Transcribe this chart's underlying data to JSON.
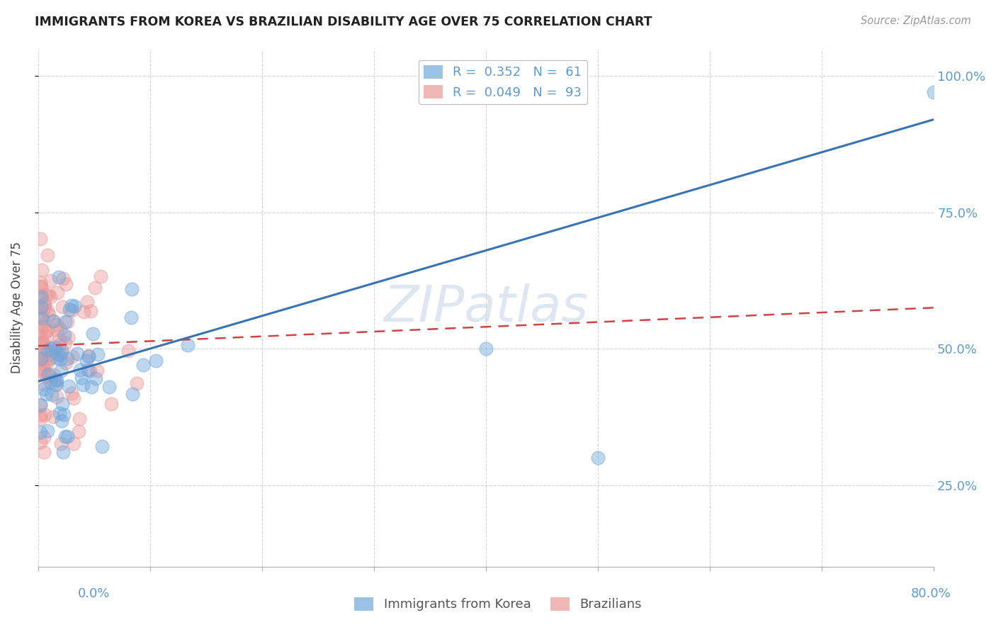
{
  "title": "IMMIGRANTS FROM KOREA VS BRAZILIAN DISABILITY AGE OVER 75 CORRELATION CHART",
  "source": "Source: ZipAtlas.com",
  "ylabel": "Disability Age Over 75",
  "ytick_labels": [
    "100.0%",
    "75.0%",
    "50.0%",
    "25.0%"
  ],
  "ytick_values": [
    1.0,
    0.75,
    0.5,
    0.25
  ],
  "xlim": [
    0.0,
    0.8
  ],
  "ylim": [
    0.1,
    1.05
  ],
  "korea_color": "#6fa8dc",
  "brazil_color": "#ea9999",
  "korea_line_color": "#3873b5",
  "brazil_line_color": "#cc4444",
  "korea_R": 0.352,
  "korea_N": 61,
  "brazil_R": 0.049,
  "brazil_N": 93,
  "background_color": "#ffffff",
  "watermark": "ZIPatlas",
  "tick_color": "#5b9bd5",
  "grid_color": "#d0d0d0"
}
